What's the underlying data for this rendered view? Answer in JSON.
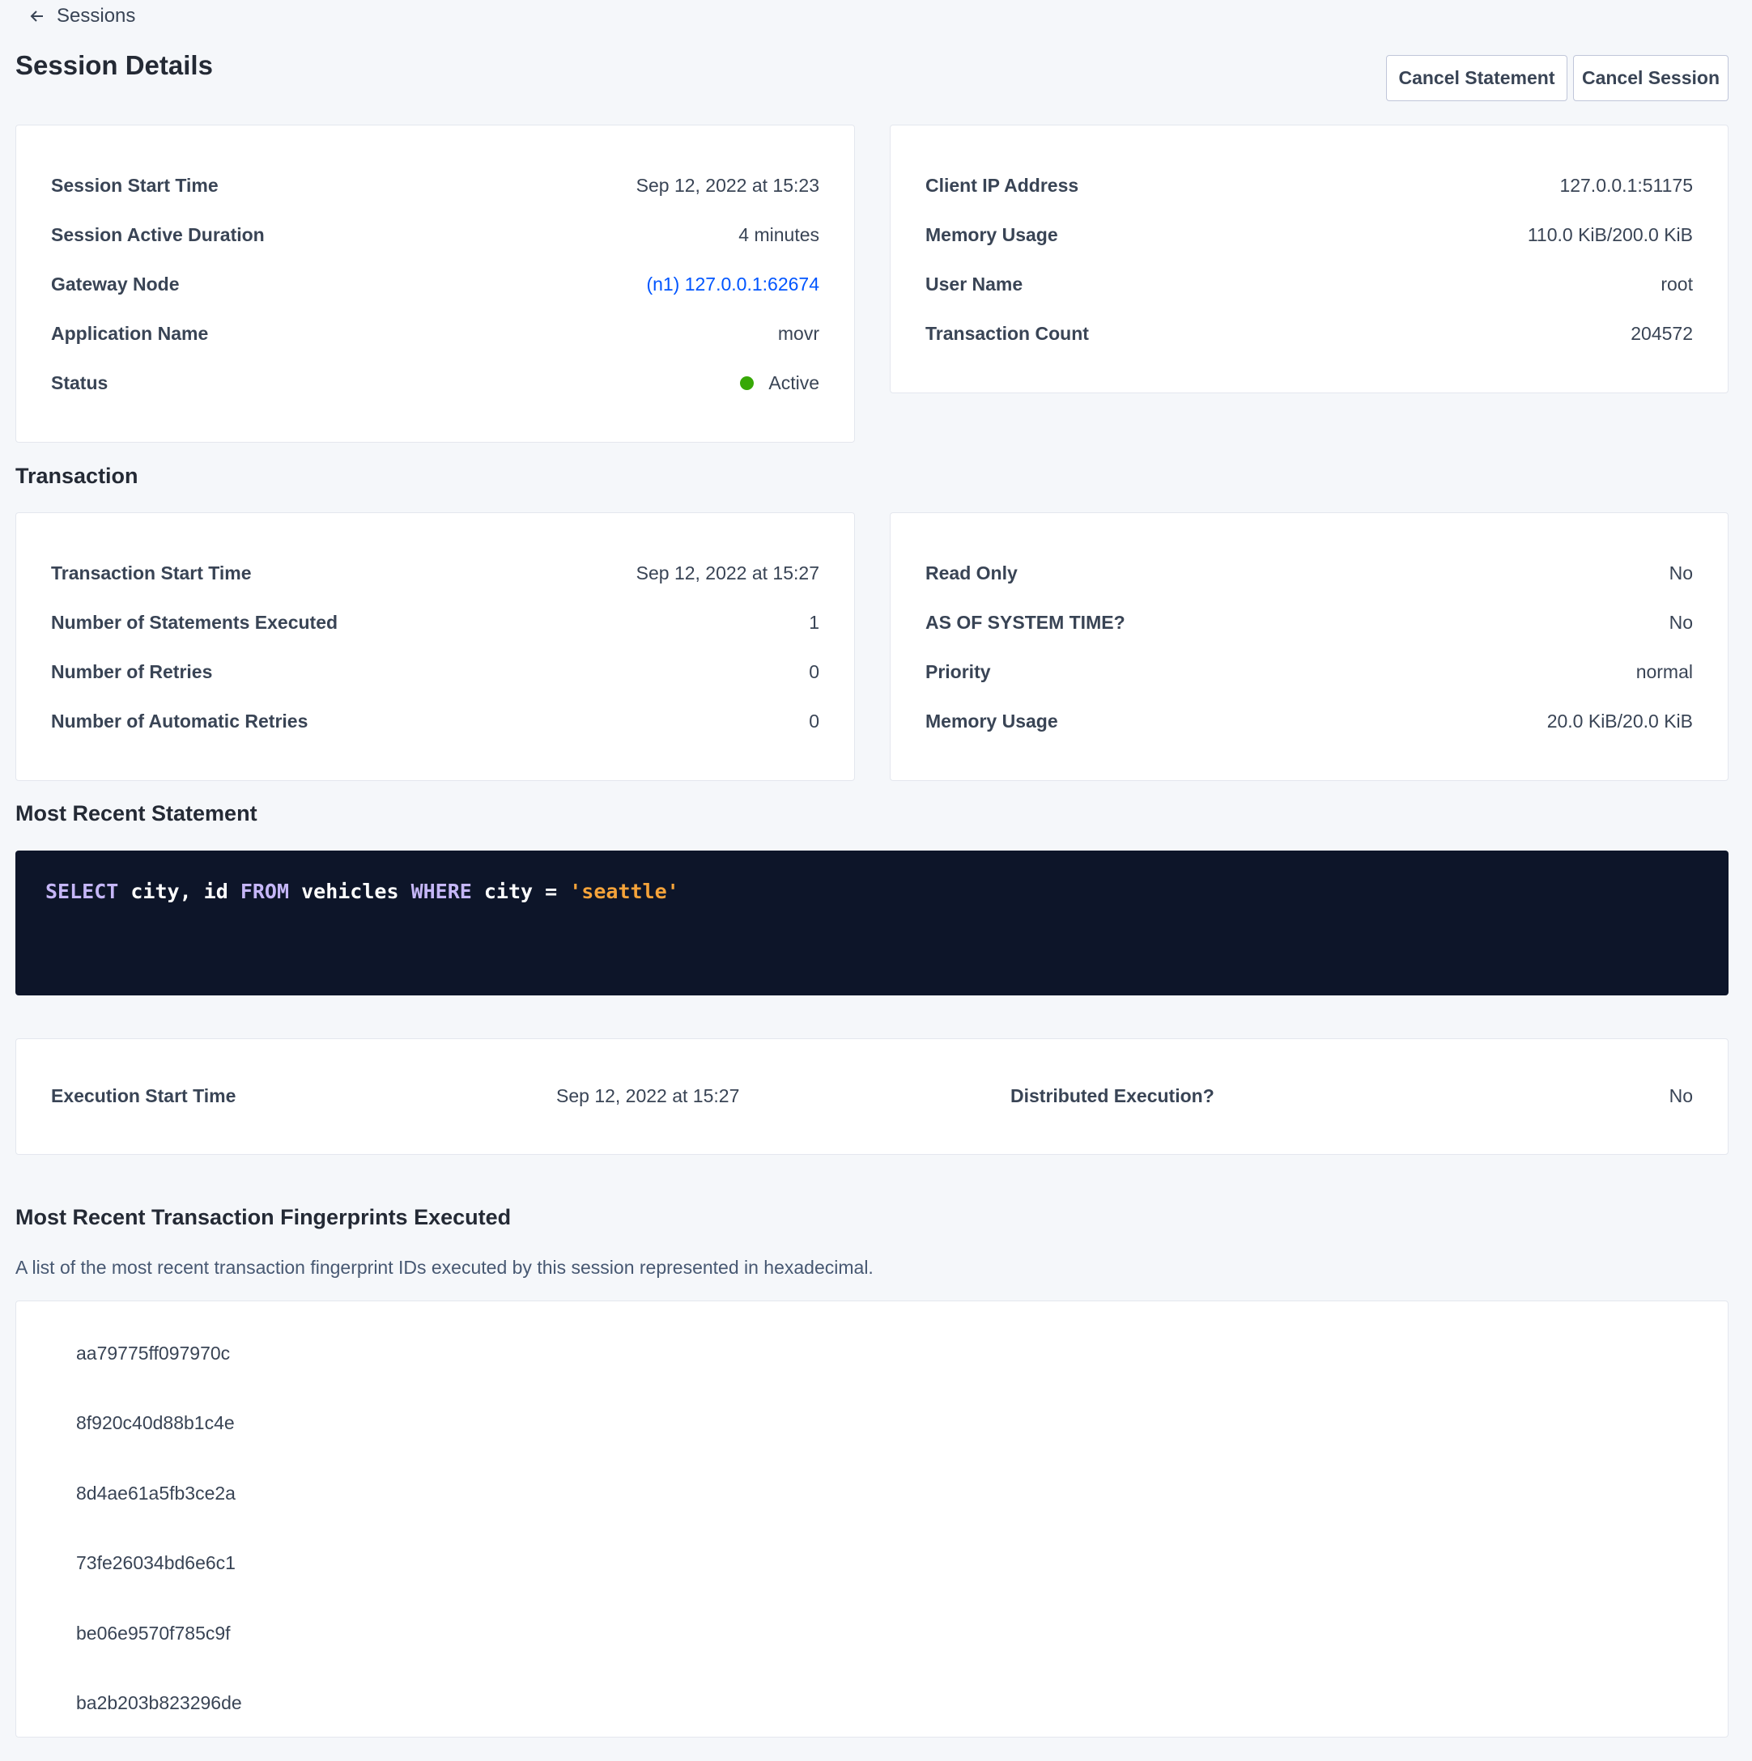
{
  "nav": {
    "back_label": "Sessions"
  },
  "header": {
    "title": "Session Details",
    "cancel_statement": "Cancel Statement",
    "cancel_session": "Cancel Session"
  },
  "session_left": [
    {
      "label": "Session Start Time",
      "value": "Sep 12, 2022 at 15:23"
    },
    {
      "label": "Session Active Duration",
      "value": "4 minutes"
    },
    {
      "label": "Gateway Node",
      "value": "(n1) 127.0.0.1:62674"
    },
    {
      "label": "Application Name",
      "value": "movr"
    },
    {
      "label": "Status",
      "value": "Active"
    }
  ],
  "session_right": [
    {
      "label": "Client IP Address",
      "value": "127.0.0.1:51175"
    },
    {
      "label": "Memory Usage",
      "value": "110.0 KiB/200.0 KiB"
    },
    {
      "label": "User Name",
      "value": "root"
    },
    {
      "label": "Transaction Count",
      "value": "204572"
    }
  ],
  "transaction": {
    "heading": "Transaction",
    "left": [
      {
        "label": "Transaction Start Time",
        "value": "Sep 12, 2022 at 15:27"
      },
      {
        "label": "Number of Statements Executed",
        "value": "1"
      },
      {
        "label": "Number of Retries",
        "value": "0"
      },
      {
        "label": "Number of Automatic Retries",
        "value": "0"
      }
    ],
    "right": [
      {
        "label": "Read Only",
        "value": "No"
      },
      {
        "label": "AS OF SYSTEM TIME?",
        "value": "No"
      },
      {
        "label": "Priority",
        "value": "normal"
      },
      {
        "label": "Memory Usage",
        "value": "20.0 KiB/20.0 KiB"
      }
    ]
  },
  "statement": {
    "heading": "Most Recent Statement",
    "sql_tokens": [
      "SELECT",
      " city, id ",
      "FROM",
      " vehicles ",
      "WHERE",
      " city = ",
      "'seattle'"
    ],
    "execution_start_label": "Execution Start Time",
    "execution_start_value": "Sep 12, 2022 at 15:27",
    "distributed_label": "Distributed Execution?",
    "distributed_value": "No"
  },
  "fingerprints": {
    "heading": "Most Recent Transaction Fingerprints Executed",
    "description": "A list of the most recent transaction fingerprint IDs executed by this session represented in hexadecimal.",
    "items": [
      "aa79775ff097970c",
      "8f920c40d88b1c4e",
      "8d4ae61a5fb3ce2a",
      "73fe26034bd6e6c1",
      "be06e9570f785c9f",
      "ba2b203b823296de"
    ]
  },
  "colors": {
    "status_active": "#37a806",
    "link": "#0055ff",
    "code_bg": "#0d1529",
    "sql_keyword": "#c5b6f7",
    "sql_string": "#f5a33a"
  }
}
